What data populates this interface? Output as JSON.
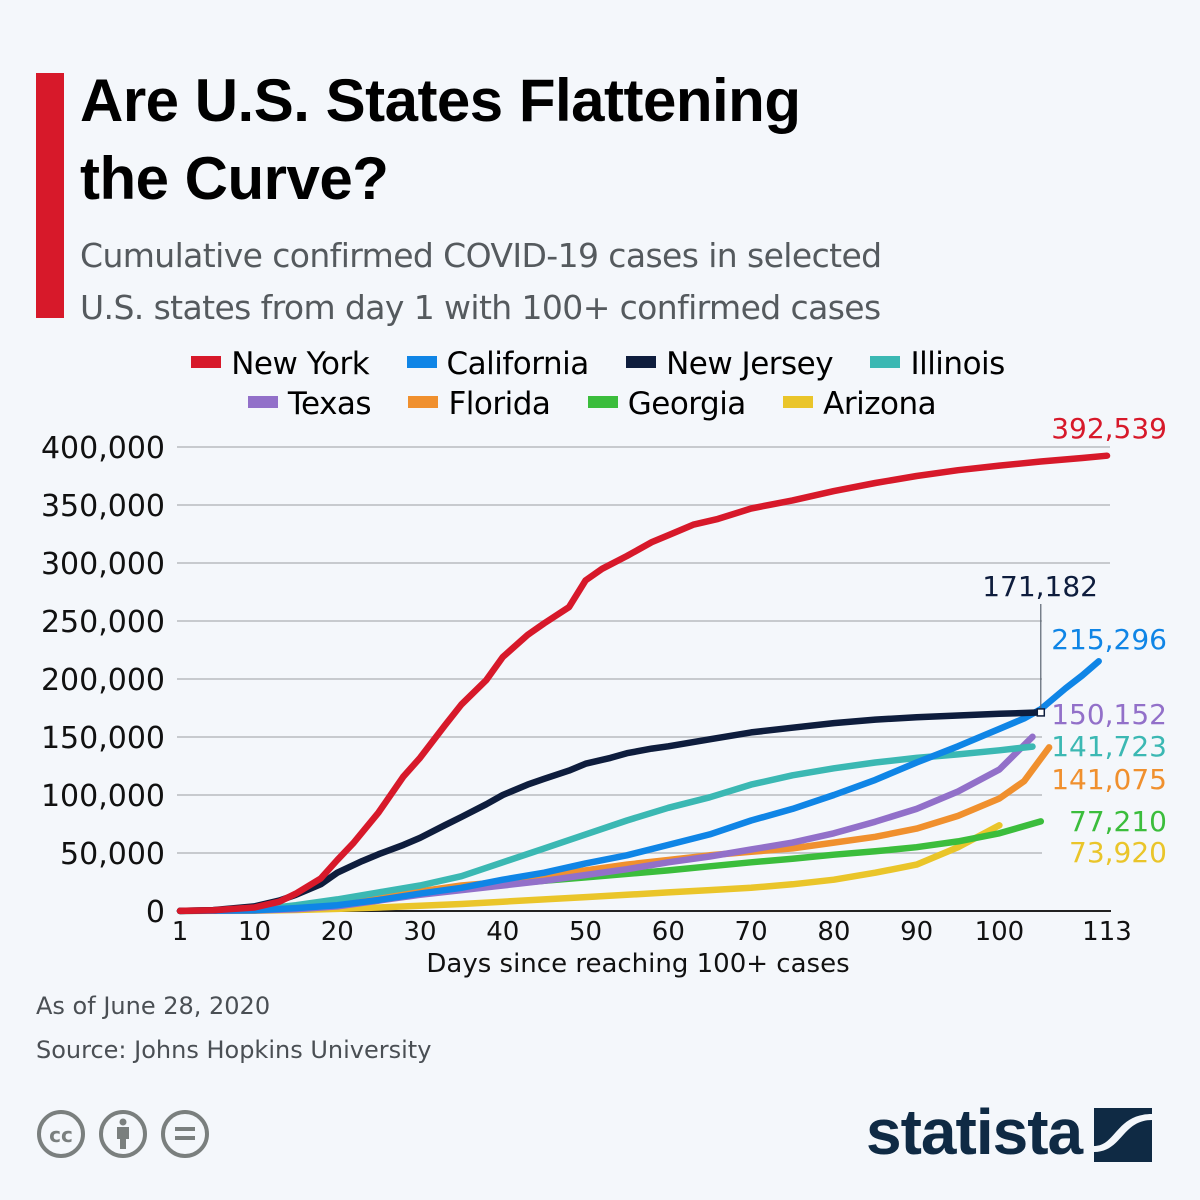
{
  "header": {
    "title": "Are U.S. States Flattening the Curve?",
    "title_line1": "Are U.S. States Flattening",
    "title_line2": "the Curve?",
    "subtitle_line1": "Cumulative confirmed COVID-19 cases in selected",
    "subtitle_line2": "U.S. states from day 1 with 100+ confirmed cases",
    "accent_color": "#d7192a"
  },
  "footer": {
    "date_note": "As of June 28, 2020",
    "source": "Source: Johns Hopkins University",
    "license_icons": [
      "creative-commons-icon",
      "attribution-icon",
      "no-derivatives-icon"
    ],
    "logo_text": "statista"
  },
  "chart_data": {
    "type": "line",
    "title": "Are U.S. States Flattening the Curve?",
    "subtitle": "Cumulative confirmed COVID-19 cases in selected U.S. states from day 1 with 100+ confirmed cases",
    "xlabel": "Days since reaching 100+ cases",
    "ylabel": "",
    "xlim": [
      1,
      113
    ],
    "ylim": [
      0,
      400000
    ],
    "x_ticks": [
      1,
      10,
      20,
      30,
      40,
      50,
      60,
      70,
      80,
      90,
      100,
      113
    ],
    "y_ticks": [
      0,
      50000,
      100000,
      150000,
      200000,
      250000,
      300000,
      350000,
      400000
    ],
    "y_tick_labels": [
      "0",
      "50,000",
      "100,000",
      "150,000",
      "200,000",
      "250,000",
      "300,000",
      "350,000",
      "400,000"
    ],
    "grid": true,
    "legend_position": "top-center",
    "series": [
      {
        "name": "New York",
        "color": "#d7192a",
        "end_label": "392,539",
        "points": [
          [
            1,
            100
          ],
          [
            5,
            600
          ],
          [
            10,
            3000
          ],
          [
            13,
            8000
          ],
          [
            15,
            15000
          ],
          [
            18,
            28000
          ],
          [
            20,
            44000
          ],
          [
            22,
            59000
          ],
          [
            25,
            85000
          ],
          [
            28,
            116000
          ],
          [
            30,
            132000
          ],
          [
            33,
            160000
          ],
          [
            35,
            178000
          ],
          [
            38,
            199000
          ],
          [
            40,
            219000
          ],
          [
            43,
            238000
          ],
          [
            45,
            248000
          ],
          [
            48,
            262000
          ],
          [
            50,
            285000
          ],
          [
            52,
            295000
          ],
          [
            55,
            306000
          ],
          [
            58,
            318000
          ],
          [
            60,
            324000
          ],
          [
            63,
            333000
          ],
          [
            66,
            338000
          ],
          [
            70,
            347000
          ],
          [
            75,
            354000
          ],
          [
            80,
            362000
          ],
          [
            85,
            369000
          ],
          [
            90,
            375000
          ],
          [
            95,
            380000
          ],
          [
            100,
            384000
          ],
          [
            105,
            387500
          ],
          [
            110,
            390500
          ],
          [
            113,
            392539
          ]
        ]
      },
      {
        "name": "California",
        "color": "#0f85e6",
        "end_label": "215,296",
        "points": [
          [
            1,
            100
          ],
          [
            10,
            700
          ],
          [
            15,
            2500
          ],
          [
            20,
            5000
          ],
          [
            25,
            9500
          ],
          [
            30,
            15000
          ],
          [
            35,
            20000
          ],
          [
            40,
            27000
          ],
          [
            45,
            33000
          ],
          [
            50,
            41000
          ],
          [
            55,
            48000
          ],
          [
            60,
            57000
          ],
          [
            65,
            66000
          ],
          [
            70,
            78000
          ],
          [
            75,
            88000
          ],
          [
            80,
            100000
          ],
          [
            85,
            113000
          ],
          [
            90,
            128000
          ],
          [
            95,
            142000
          ],
          [
            100,
            157000
          ],
          [
            103,
            166000
          ],
          [
            105,
            174000
          ],
          [
            108,
            192000
          ],
          [
            110,
            203000
          ],
          [
            112,
            215296
          ]
        ]
      },
      {
        "name": "New Jersey",
        "color": "#0e1d3d",
        "end_label": "171,182",
        "points": [
          [
            1,
            100
          ],
          [
            5,
            800
          ],
          [
            10,
            4000
          ],
          [
            13,
            9000
          ],
          [
            15,
            14000
          ],
          [
            18,
            23000
          ],
          [
            20,
            33000
          ],
          [
            23,
            43000
          ],
          [
            25,
            49000
          ],
          [
            28,
            57000
          ],
          [
            30,
            63000
          ],
          [
            33,
            74000
          ],
          [
            35,
            81000
          ],
          [
            38,
            92000
          ],
          [
            40,
            100000
          ],
          [
            43,
            109000
          ],
          [
            45,
            114000
          ],
          [
            48,
            121000
          ],
          [
            50,
            127000
          ],
          [
            53,
            132000
          ],
          [
            55,
            136000
          ],
          [
            58,
            140000
          ],
          [
            60,
            142000
          ],
          [
            65,
            148000
          ],
          [
            70,
            154000
          ],
          [
            75,
            158000
          ],
          [
            80,
            162000
          ],
          [
            85,
            165000
          ],
          [
            90,
            167000
          ],
          [
            95,
            168500
          ],
          [
            100,
            170000
          ],
          [
            105,
            171182
          ]
        ]
      },
      {
        "name": "Illinois",
        "color": "#3bb8b3",
        "end_label": "141,723",
        "points": [
          [
            1,
            100
          ],
          [
            10,
            1000
          ],
          [
            15,
            5000
          ],
          [
            20,
            10000
          ],
          [
            25,
            16000
          ],
          [
            30,
            22000
          ],
          [
            35,
            30000
          ],
          [
            40,
            42000
          ],
          [
            45,
            54000
          ],
          [
            50,
            66000
          ],
          [
            55,
            78000
          ],
          [
            60,
            89000
          ],
          [
            65,
            98000
          ],
          [
            70,
            109000
          ],
          [
            75,
            117000
          ],
          [
            80,
            123000
          ],
          [
            85,
            128000
          ],
          [
            90,
            132000
          ],
          [
            95,
            135000
          ],
          [
            100,
            138500
          ],
          [
            104,
            141723
          ]
        ]
      },
      {
        "name": "Texas",
        "color": "#9270c9",
        "end_label": "150,152",
        "points": [
          [
            1,
            100
          ],
          [
            10,
            400
          ],
          [
            15,
            1500
          ],
          [
            20,
            4000
          ],
          [
            25,
            9000
          ],
          [
            30,
            14000
          ],
          [
            35,
            18000
          ],
          [
            40,
            22000
          ],
          [
            45,
            26000
          ],
          [
            50,
            31000
          ],
          [
            55,
            36000
          ],
          [
            60,
            42000
          ],
          [
            65,
            47000
          ],
          [
            70,
            53000
          ],
          [
            75,
            59000
          ],
          [
            80,
            67000
          ],
          [
            85,
            77000
          ],
          [
            90,
            88000
          ],
          [
            95,
            103000
          ],
          [
            100,
            122000
          ],
          [
            104,
            150152
          ]
        ]
      },
      {
        "name": "Florida",
        "color": "#f0902e",
        "end_label": "141,075",
        "points": [
          [
            1,
            100
          ],
          [
            10,
            700
          ],
          [
            15,
            3000
          ],
          [
            20,
            7000
          ],
          [
            25,
            12000
          ],
          [
            30,
            17000
          ],
          [
            35,
            22000
          ],
          [
            40,
            25000
          ],
          [
            45,
            30000
          ],
          [
            50,
            35000
          ],
          [
            55,
            40000
          ],
          [
            60,
            44000
          ],
          [
            65,
            48000
          ],
          [
            70,
            51000
          ],
          [
            75,
            54000
          ],
          [
            80,
            59000
          ],
          [
            85,
            64000
          ],
          [
            90,
            71000
          ],
          [
            95,
            82000
          ],
          [
            100,
            97000
          ],
          [
            103,
            112000
          ],
          [
            106,
            141075
          ]
        ]
      },
      {
        "name": "Georgia",
        "color": "#3bbd3c",
        "end_label": "77,210",
        "points": [
          [
            1,
            100
          ],
          [
            10,
            500
          ],
          [
            15,
            2500
          ],
          [
            20,
            6000
          ],
          [
            25,
            10000
          ],
          [
            30,
            15000
          ],
          [
            35,
            19000
          ],
          [
            40,
            23000
          ],
          [
            45,
            26000
          ],
          [
            50,
            29000
          ],
          [
            55,
            32000
          ],
          [
            60,
            35000
          ],
          [
            65,
            38500
          ],
          [
            70,
            42000
          ],
          [
            75,
            45000
          ],
          [
            80,
            48500
          ],
          [
            85,
            51500
          ],
          [
            90,
            55000
          ],
          [
            95,
            60000
          ],
          [
            100,
            67000
          ],
          [
            105,
            77210
          ]
        ]
      },
      {
        "name": "Arizona",
        "color": "#eac52a",
        "end_label": "73,920",
        "points": [
          [
            1,
            100
          ],
          [
            10,
            300
          ],
          [
            15,
            900
          ],
          [
            20,
            1800
          ],
          [
            25,
            3000
          ],
          [
            30,
            4500
          ],
          [
            35,
            6000
          ],
          [
            40,
            8000
          ],
          [
            45,
            10000
          ],
          [
            50,
            12000
          ],
          [
            55,
            14000
          ],
          [
            60,
            16000
          ],
          [
            65,
            18000
          ],
          [
            70,
            20000
          ],
          [
            75,
            23000
          ],
          [
            80,
            27000
          ],
          [
            85,
            33000
          ],
          [
            90,
            40000
          ],
          [
            95,
            55000
          ],
          [
            100,
            73920
          ]
        ]
      }
    ]
  }
}
